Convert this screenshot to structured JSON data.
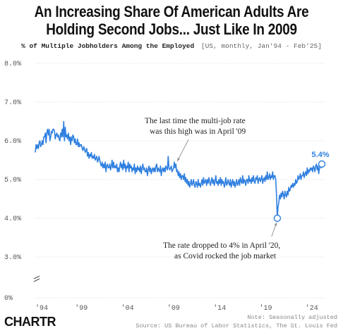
{
  "header": {
    "title_line1": "An Increasing Share Of American Adults Are",
    "title_line2": "Holding Second Jobs... Just Like In 2009",
    "subtitle": "% of Multiple Jobholders Among the Employed",
    "subtitle_note": "[US, monthly, Jan'94 - Feb'25]"
  },
  "footer": {
    "brand": "CHARTR",
    "note": "Note: Seasonally adjusted",
    "source": "Source: US Bureau of Labor Statistics, The St. Louis Fed"
  },
  "colors": {
    "line": "#2f7fe0",
    "grid": "#d6d6d6",
    "text": "#111111"
  },
  "chart_data": {
    "type": "line",
    "series": [
      {
        "values_by_year": {
          "1994": [
            5.7,
            5.9,
            5.8,
            5.9,
            5.8,
            5.95,
            6.0,
            5.85,
            5.9,
            6.0,
            5.9,
            6.1
          ],
          "1995": [
            6.1,
            6.2,
            5.95,
            6.2,
            6.3,
            6.15,
            6.3,
            6.0,
            6.1,
            6.25,
            6.2,
            6.3
          ],
          "1996": [
            6.3,
            6.25,
            6.05,
            6.15,
            6.2,
            6.1,
            6.15,
            6.05,
            6.0,
            6.2,
            6.1,
            6.3
          ],
          "1997": [
            6.1,
            6.5,
            6.0,
            6.35,
            6.1,
            6.15,
            6.05,
            6.2,
            6.0,
            6.1,
            5.9,
            6.1
          ],
          "1998": [
            6.0,
            6.15,
            6.1,
            5.95,
            6.05,
            5.9,
            5.9,
            6.05,
            5.85,
            5.95,
            5.85,
            5.9
          ],
          "1999": [
            5.9,
            5.8,
            5.75,
            5.85,
            5.8,
            5.7,
            5.75,
            5.8,
            5.6,
            5.7,
            5.55,
            5.65
          ],
          "2000": [
            5.6,
            5.7,
            5.55,
            5.6,
            5.55,
            5.65,
            5.5,
            5.55,
            5.6,
            5.45,
            5.5,
            5.6
          ],
          "2001": [
            5.5,
            5.4,
            5.35,
            5.45,
            5.3,
            5.4,
            5.3,
            5.45,
            5.2,
            5.35,
            5.4,
            5.3
          ],
          "2002": [
            5.3,
            5.4,
            5.25,
            5.35,
            5.5,
            5.3,
            5.45,
            5.3,
            5.35,
            5.3,
            5.4,
            5.2
          ],
          "2003": [
            5.3,
            5.2,
            5.35,
            5.45,
            5.3,
            5.4,
            5.25,
            5.5,
            5.3,
            5.4,
            5.2,
            5.35
          ],
          "2004": [
            5.3,
            5.45,
            5.2,
            5.4,
            5.3,
            5.35,
            5.2,
            5.3,
            5.25,
            5.4,
            5.15,
            5.3
          ],
          "2005": [
            5.2,
            5.35,
            5.25,
            5.3,
            5.2,
            5.35,
            5.15,
            5.3,
            5.4,
            5.25,
            5.3,
            5.2
          ],
          "2006": [
            5.2,
            5.3,
            5.1,
            5.25,
            5.35,
            5.2,
            5.3,
            5.15,
            5.25,
            5.3,
            5.2,
            5.3
          ],
          "2007": [
            5.2,
            5.35,
            5.4,
            5.2,
            5.3,
            5.25,
            5.2,
            5.35,
            5.1,
            5.25,
            5.3,
            5.2
          ],
          "2008": [
            5.3,
            5.2,
            5.35,
            5.3,
            5.25,
            5.6,
            5.3,
            5.25,
            5.3,
            5.35,
            5.2,
            5.25
          ],
          "2009": [
            5.3,
            5.45,
            5.3,
            5.4,
            5.2,
            5.25,
            5.1,
            5.2,
            5.05,
            5.15,
            5.0,
            5.1
          ],
          "2010": [
            5.1,
            5.0,
            5.15,
            4.95,
            5.05,
            4.9,
            5.0,
            4.85,
            4.95,
            4.8,
            4.9,
            5.0
          ],
          "2011": [
            4.85,
            4.9,
            5.0,
            4.85,
            4.8,
            4.95,
            4.9,
            4.8,
            5.0,
            4.85,
            4.9,
            4.8
          ],
          "2012": [
            4.9,
            5.0,
            4.85,
            5.05,
            4.9,
            4.95,
            5.0,
            4.85,
            5.0,
            4.9,
            5.05,
            4.95
          ],
          "2013": [
            4.85,
            4.95,
            5.05,
            4.9,
            5.0,
            4.85,
            4.95,
            5.1,
            4.9,
            4.95,
            4.85,
            5.0
          ],
          "2014": [
            4.9,
            5.05,
            4.85,
            5.0,
            4.9,
            4.95,
            4.8,
            4.9,
            5.05,
            4.85,
            4.9,
            5.0
          ],
          "2015": [
            4.9,
            4.85,
            5.0,
            4.8,
            4.9,
            5.0,
            4.85,
            4.95,
            4.8,
            4.9,
            5.0,
            4.85
          ],
          "2016": [
            4.9,
            5.0,
            4.85,
            5.05,
            4.95,
            4.9,
            5.1,
            4.9,
            5.0,
            4.95,
            4.85,
            5.0
          ],
          "2017": [
            5.0,
            4.9,
            5.1,
            4.95,
            5.0,
            4.9,
            5.05,
            4.95,
            5.1,
            4.95,
            4.9,
            5.05
          ],
          "2018": [
            5.0,
            5.1,
            4.9,
            5.0,
            5.05,
            4.95,
            5.0,
            5.1,
            4.9,
            5.0,
            5.05,
            4.95
          ],
          "2019": [
            5.1,
            5.0,
            5.2,
            5.0,
            5.05,
            5.15,
            5.0,
            5.1,
            5.05,
            5.2,
            5.0,
            5.1
          ],
          "2020": [
            5.1,
            5.0,
            4.6,
            4.0,
            4.3,
            4.4,
            4.6,
            4.5,
            4.65,
            4.55,
            4.7,
            4.6
          ],
          "2021": [
            4.5,
            4.7,
            4.6,
            4.55,
            4.7,
            4.6,
            4.8,
            4.7,
            4.75,
            4.85,
            4.8,
            4.9
          ],
          "2022": [
            4.8,
            4.9,
            4.85,
            5.0,
            4.9,
            4.95,
            5.1,
            5.0,
            5.05,
            5.15,
            5.0,
            5.1
          ],
          "2023": [
            5.1,
            5.2,
            5.05,
            5.15,
            5.2,
            5.1,
            5.3,
            5.15,
            5.25,
            5.2,
            5.3,
            5.25
          ],
          "2024": [
            5.3,
            5.2,
            5.35,
            5.3,
            5.2,
            5.35,
            5.4,
            5.25,
            5.35,
            5.15,
            5.3,
            5.4
          ],
          "2025": [
            5.3,
            5.4
          ]
        }
      }
    ],
    "x_range": [
      "1994-01",
      "2025-02"
    ],
    "x_ticks": [
      "'94",
      "'99",
      "'04",
      "'09",
      "'14",
      "'19",
      "'24"
    ],
    "x_tick_years": [
      1994,
      1999,
      2004,
      2009,
      2014,
      2019,
      2024
    ],
    "y_ticks": [
      "8.0%",
      "7.0%",
      "6.0%",
      "5.0%",
      "4.0%",
      "3.0%",
      "0%"
    ],
    "y_tick_values": [
      8,
      7,
      6,
      5,
      4,
      3,
      0
    ],
    "ylim": [
      3,
      8
    ],
    "y_axis_break": true,
    "grid": true,
    "annotations": [
      {
        "text_line1": "The last time the multi-job rate",
        "text_line2": "was this high was in April '09",
        "date": "2009-04",
        "value": 5.4
      },
      {
        "text_line1": "The rate dropped to 4% in April '20,",
        "text_line2": "as Covid rocked the job market",
        "date": "2020-04",
        "value": 4.0
      }
    ],
    "end_label": "5.4%",
    "end_value": 5.4
  }
}
